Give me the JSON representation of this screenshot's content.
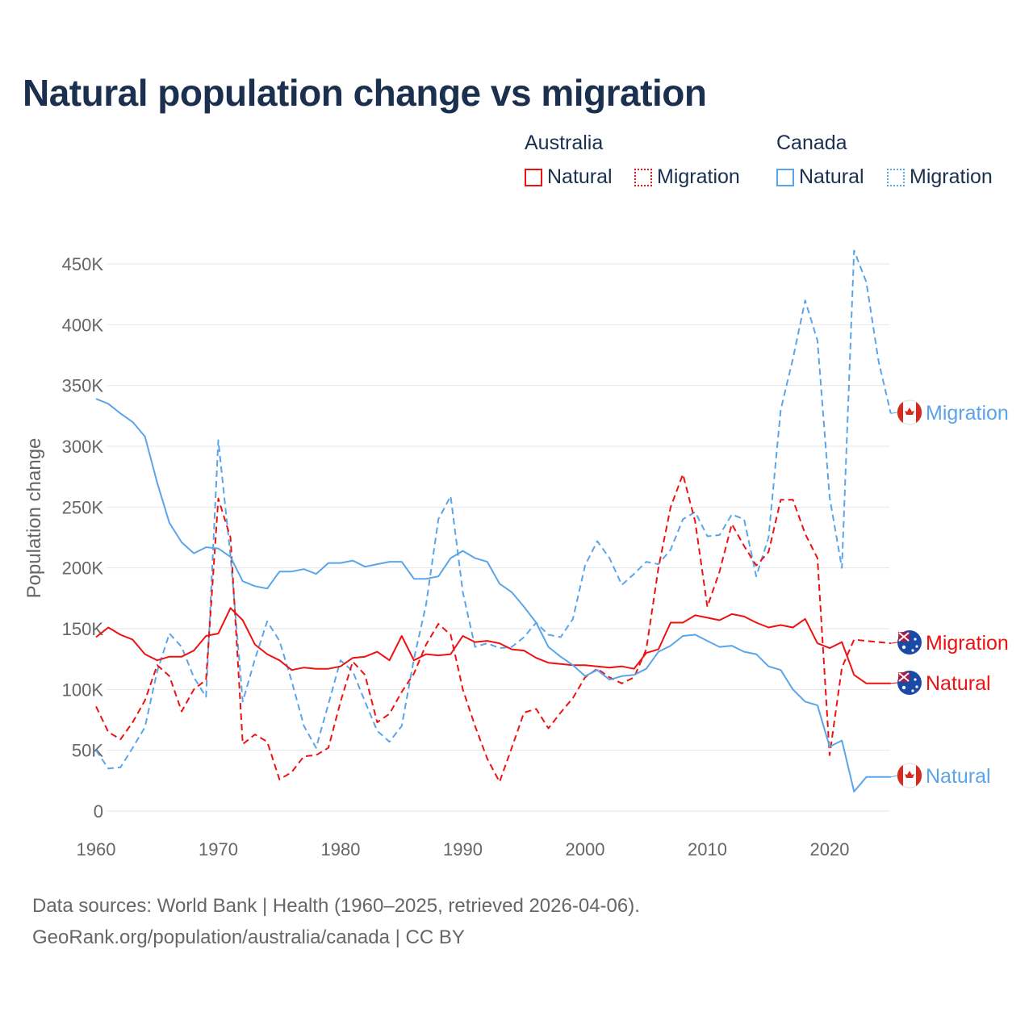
{
  "title": "Natural population change vs migration",
  "legend": {
    "groups": [
      {
        "name": "Australia",
        "items": [
          {
            "label": "Natural",
            "style": "solid",
            "color": "#ee1111"
          },
          {
            "label": "Migration",
            "style": "dotted",
            "color": "#ee1111"
          }
        ]
      },
      {
        "name": "Canada",
        "items": [
          {
            "label": "Natural",
            "style": "solid",
            "color": "#5aa5ea"
          },
          {
            "label": "Migration",
            "style": "dotted",
            "color": "#5aa5ea"
          }
        ]
      }
    ]
  },
  "footer": {
    "line1": "Data sources: World Bank | Health (1960–2025, retrieved 2026-04-06).",
    "line2": "GeoRank.org/population/australia/canada | CC BY"
  },
  "chart_data": {
    "type": "line",
    "title": "Natural population change vs migration",
    "xlabel": "",
    "ylabel": "Population change",
    "xlim": [
      1960,
      2025
    ],
    "ylim": [
      0,
      450000
    ],
    "yticks": [
      0,
      50000,
      100000,
      150000,
      200000,
      250000,
      300000,
      350000,
      400000,
      450000
    ],
    "ytick_labels": [
      "0",
      "50K",
      "100K",
      "150K",
      "200K",
      "250K",
      "300K",
      "350K",
      "400K",
      "450K"
    ],
    "xticks": [
      1960,
      1970,
      1980,
      1990,
      2000,
      2010,
      2020
    ],
    "xtick_labels": [
      "1960",
      "1970",
      "1980",
      "1990",
      "2000",
      "2010",
      "2020"
    ],
    "grid": true,
    "legend_position": "top-right",
    "x_start": 1960,
    "unit": "thousands",
    "series": [
      {
        "name": "Canada Migration",
        "country": "Canada",
        "end_label": "Migration",
        "color": "#5aa5ea",
        "dashed": true,
        "values": [
          50,
          35,
          36,
          52,
          69,
          115,
          146,
          135,
          110,
          94,
          305,
          210,
          90,
          125,
          156,
          140,
          107,
          70,
          52,
          88,
          124,
          115,
          90,
          66,
          57,
          70,
          125,
          170,
          240,
          259,
          180,
          135,
          138,
          134,
          135,
          143,
          155,
          145,
          143,
          158,
          202,
          222,
          208,
          186,
          195,
          205,
          203,
          215,
          240,
          246,
          226,
          227,
          244,
          240,
          193,
          225,
          330,
          372,
          420,
          387,
          258,
          200,
          461,
          435,
          370,
          327
        ]
      },
      {
        "name": "Australia Migration",
        "country": "Australia",
        "end_label": "Migration",
        "color": "#ee1111",
        "dashed": true,
        "values": [
          86,
          65,
          59,
          73,
          91,
          120,
          111,
          82,
          100,
          108,
          257,
          225,
          55,
          63,
          57,
          26,
          32,
          45,
          46,
          52,
          90,
          123,
          112,
          73,
          80,
          98,
          113,
          137,
          154,
          145,
          100,
          70,
          43,
          24,
          52,
          81,
          84,
          68,
          81,
          93,
          110,
          117,
          110,
          105,
          110,
          133,
          200,
          250,
          277,
          238,
          168,
          197,
          236,
          218,
          202,
          213,
          256,
          256,
          228,
          208,
          46,
          118,
          141,
          140,
          139,
          138
        ]
      },
      {
        "name": "Australia Natural",
        "country": "Australia",
        "end_label": "Natural",
        "color": "#ee1111",
        "dashed": false,
        "values": [
          143,
          151,
          145,
          141,
          129,
          124,
          127,
          127,
          132,
          144,
          146,
          167,
          157,
          137,
          129,
          124,
          116,
          118,
          117,
          117,
          119,
          126,
          127,
          131,
          124,
          144,
          124,
          129,
          128,
          129,
          144,
          139,
          140,
          138,
          133,
          132,
          126,
          122,
          121,
          120,
          120,
          119,
          118,
          119,
          117,
          130,
          133,
          155,
          155,
          161,
          159,
          157,
          162,
          160,
          155,
          151,
          153,
          151,
          158,
          138,
          134,
          139,
          112,
          105,
          105,
          105
        ]
      },
      {
        "name": "Canada Natural",
        "country": "Canada",
        "end_label": "Natural",
        "color": "#5aa5ea",
        "dashed": false,
        "values": [
          339,
          335,
          327,
          320,
          308,
          270,
          237,
          221,
          212,
          217,
          216,
          209,
          189,
          185,
          183,
          197,
          197,
          199,
          195,
          204,
          204,
          206,
          201,
          203,
          205,
          205,
          191,
          191,
          193,
          208,
          214,
          208,
          205,
          187,
          180,
          168,
          155,
          135,
          127,
          120,
          111,
          116,
          108,
          111,
          112,
          117,
          131,
          136,
          144,
          145,
          140,
          135,
          136,
          131,
          129,
          119,
          116,
          100,
          90,
          87,
          53,
          58,
          16,
          28,
          28,
          28
        ]
      }
    ]
  }
}
